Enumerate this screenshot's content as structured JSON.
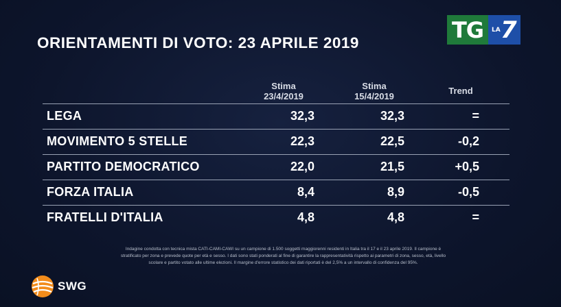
{
  "title": "ORIENTAMENTI DI VOTO: 23 APRILE 2019",
  "logo": {
    "tg": "TG",
    "la": "LA",
    "seven": "7"
  },
  "columns": {
    "stima1_line1": "Stima",
    "stima1_line2": "23/4/2019",
    "stima2_line1": "Stima",
    "stima2_line2": "15/4/2019",
    "trend": "Trend"
  },
  "rows": [
    {
      "party": "LEGA",
      "v1": "32,3",
      "v2": "32,3",
      "trend": "="
    },
    {
      "party": "MOVIMENTO 5 STELLE",
      "v1": "22,3",
      "v2": "22,5",
      "trend": "-0,2"
    },
    {
      "party": "PARTITO DEMOCRATICO",
      "v1": "22,0",
      "v2": "21,5",
      "trend": "+0,5"
    },
    {
      "party": "FORZA ITALIA",
      "v1": "8,4",
      "v2": "8,9",
      "trend": "-0,5"
    },
    {
      "party": "FRATELLI D'ITALIA",
      "v1": "4,8",
      "v2": "4,8",
      "trend": "="
    }
  ],
  "footnote": {
    "line1": "Indagine condotta con tecnica mista CATI-CAMI-CAWI su un campione di 1.500 soggetti maggiorenni residenti in Italia tra il 17 e il 23 aprile 2019. Il campione è",
    "line2": "stratificato per zona e prevede quote per età e sesso. I dati sono stati ponderati al fine di garantire la rappresentatività rispetto ai parametri di zona, sesso, età, livello",
    "line3": "scolare e partito votato alle ultime elezioni. Il margine d'errore statistico dei dati riportati è del 2,5% a un intervallo di confidenza del 95%."
  },
  "source": "SWG",
  "colors": {
    "background": "#0d152c",
    "tg_green": "#1f7a3a",
    "la7_blue": "#1e4fa8",
    "swg_orange": "#f28c1b"
  }
}
